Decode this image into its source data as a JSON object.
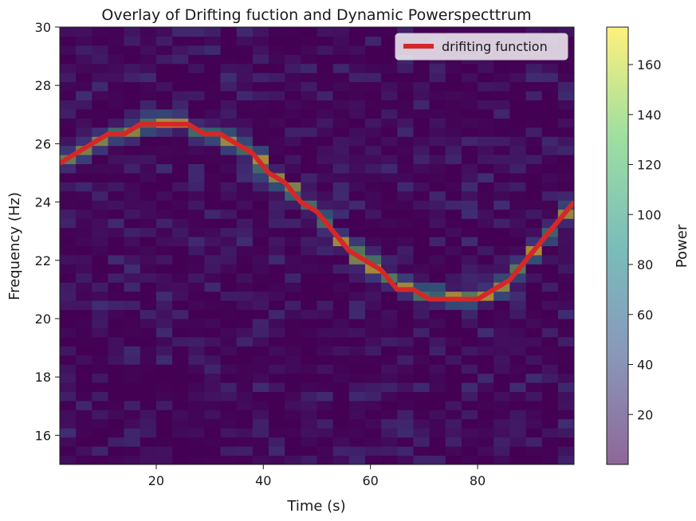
{
  "chart_data": {
    "type": "heatmap",
    "title": "Overlay of Drifting fuction and Dynamic Powerspecttrum",
    "xlabel": "Time (s)",
    "ylabel": "Frequency (Hz)",
    "xlim": [
      2,
      98
    ],
    "ylim": [
      15,
      30
    ],
    "xticks": [
      "20",
      "40",
      "60",
      "80"
    ],
    "yticks": [
      "16",
      "18",
      "20",
      "22",
      "24",
      "26",
      "28",
      "30"
    ],
    "colorbar": {
      "label": "Power",
      "min": 0,
      "max": 175,
      "ticks": [
        "20",
        "40",
        "60",
        "80",
        "100",
        "120",
        "140",
        "160"
      ],
      "colormap": "viridis",
      "alpha": 0.6
    },
    "heatmap": {
      "time_bins": 32,
      "freq_bins": 48,
      "background_power_range": [
        0,
        25
      ],
      "ridge_power_range": [
        100,
        175
      ]
    },
    "legend": {
      "position": "top-right",
      "entries": [
        "drifiting function"
      ]
    },
    "series": [
      {
        "name": "drifiting function",
        "color": "#d62728",
        "x": [
          2,
          5,
          8,
          11,
          14,
          17,
          20,
          23,
          26,
          29,
          32,
          35,
          38,
          41,
          44,
          47,
          50,
          53,
          56,
          59,
          62,
          65,
          68,
          71,
          74,
          77,
          80,
          83,
          86,
          89,
          92,
          95,
          98
        ],
        "y": [
          25.33,
          25.67,
          26.0,
          26.33,
          26.33,
          26.67,
          26.67,
          26.67,
          26.67,
          26.33,
          26.33,
          26.0,
          25.67,
          25.0,
          24.67,
          24.0,
          23.67,
          23.0,
          22.33,
          22.0,
          21.67,
          21.0,
          21.0,
          20.67,
          20.67,
          20.67,
          20.67,
          21.0,
          21.33,
          22.0,
          22.67,
          23.33,
          24.0
        ]
      }
    ]
  }
}
